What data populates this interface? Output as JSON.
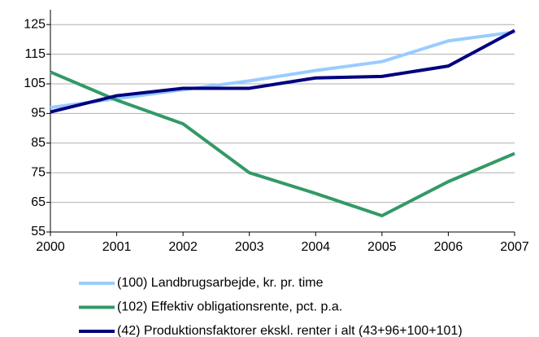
{
  "chart_data": {
    "type": "line",
    "x": [
      2000,
      2001,
      2002,
      2003,
      2004,
      2005,
      2006,
      2007
    ],
    "xlim": [
      2000,
      2007
    ],
    "xticks": [
      2000,
      2001,
      2002,
      2003,
      2004,
      2005,
      2006,
      2007
    ],
    "ylim": [
      55,
      130
    ],
    "yticks": [
      55,
      65,
      75,
      85,
      95,
      105,
      115,
      125
    ],
    "grid": true,
    "legend": "bottom",
    "series": [
      {
        "name": "(100) Landbrugsarbejde, kr. pr. time",
        "color": "#99ccff",
        "values": [
          97,
          100,
          103,
          106,
          109.5,
          112.5,
          119.5,
          122.5
        ]
      },
      {
        "name": "(102) Effektiv obligationsrente, pct. p.a.",
        "color": "#339966",
        "values": [
          109,
          99.5,
          91.5,
          75,
          68,
          60.5,
          72,
          81.5
        ]
      },
      {
        "name": "(42) Produktionsfaktorer ekskl. renter i alt (43+96+100+101)",
        "color": "#000080",
        "values": [
          95.5,
          101,
          103.5,
          103.5,
          107,
          107.5,
          111,
          123
        ]
      }
    ]
  }
}
